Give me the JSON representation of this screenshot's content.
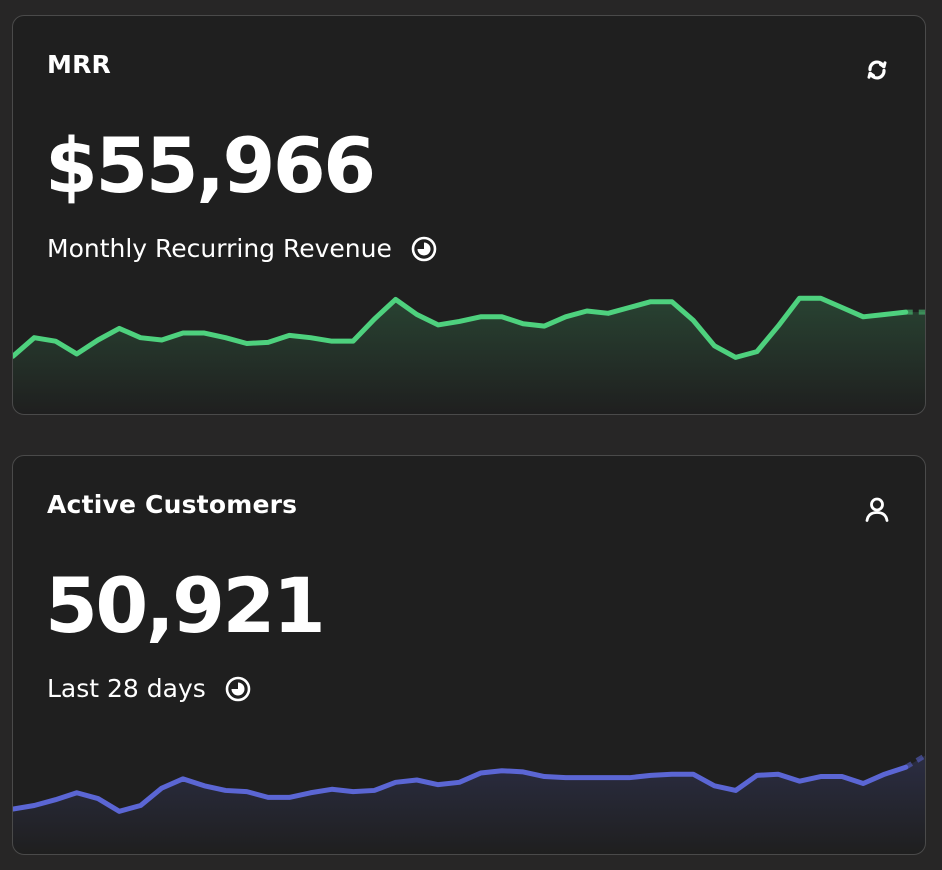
{
  "cards": [
    {
      "id": "mrr",
      "title": "MRR",
      "value": "$55,966",
      "subtitle": "Monthly Recurring Revenue",
      "header_icon": "refresh-arrows-icon",
      "subtitle_icon": "clock-pie-icon",
      "accent_color": "#4ed17e",
      "series": [
        0.36,
        0.52,
        0.49,
        0.38,
        0.5,
        0.6,
        0.52,
        0.5,
        0.56,
        0.56,
        0.52,
        0.47,
        0.48,
        0.54,
        0.52,
        0.49,
        0.49,
        0.68,
        0.85,
        0.72,
        0.63,
        0.66,
        0.7,
        0.7,
        0.64,
        0.62,
        0.7,
        0.75,
        0.73,
        0.78,
        0.83,
        0.83,
        0.67,
        0.45,
        0.35,
        0.4,
        0.62,
        0.86,
        0.86,
        0.78,
        0.7,
        0.72,
        0.74,
        0.74
      ]
    },
    {
      "id": "customers",
      "title": "Active Customers",
      "value": "50,921",
      "subtitle": "Last 28 days",
      "header_icon": "user-icon",
      "subtitle_icon": "clock-pie-icon",
      "accent_color": "#5b66d4",
      "series": [
        0.25,
        0.28,
        0.33,
        0.39,
        0.34,
        0.23,
        0.28,
        0.43,
        0.51,
        0.45,
        0.41,
        0.4,
        0.35,
        0.35,
        0.39,
        0.42,
        0.4,
        0.41,
        0.48,
        0.5,
        0.46,
        0.48,
        0.56,
        0.58,
        0.57,
        0.53,
        0.52,
        0.52,
        0.52,
        0.52,
        0.54,
        0.55,
        0.55,
        0.45,
        0.41,
        0.54,
        0.55,
        0.49,
        0.53,
        0.53,
        0.47,
        0.55,
        0.61,
        0.72
      ]
    }
  ]
}
